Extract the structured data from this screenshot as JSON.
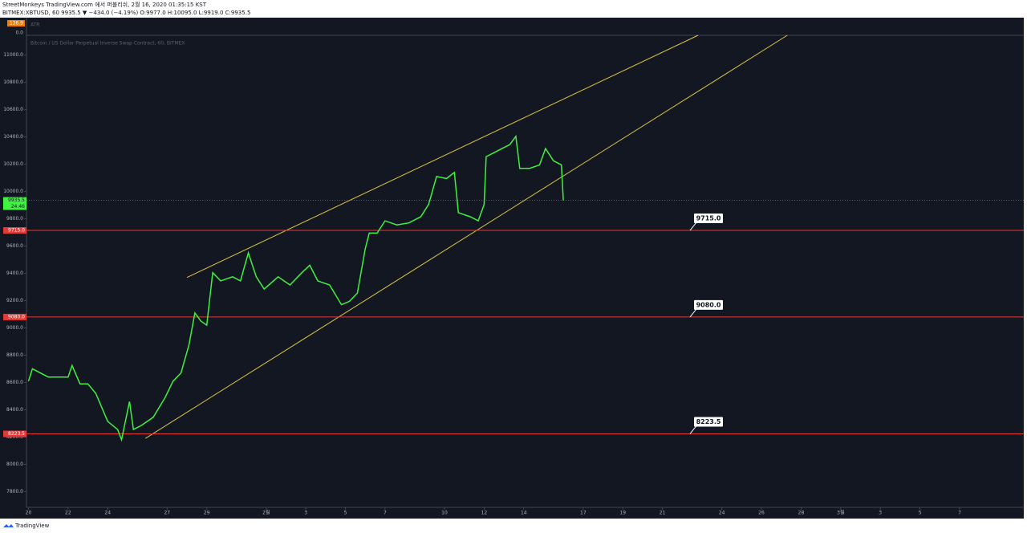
{
  "header": {
    "line1": "StreetMonkeys TradingView.com 에서 퍼블리쉬, 2월 16, 2020 01:35:15 KST",
    "line2": "BITMEX:XBTUSD, 60 9935.5 ▼ −434.0 (−4.19%) O:9977.0 H:10095.0 L:9919.0 C:9935.5"
  },
  "footer": {
    "brand": "TradingView"
  },
  "chart_data": {
    "type": "line",
    "subtitle": "Bitcoin / US Dollar Perpetual Inverse Swap Contract, 60, BITMEX",
    "indicator": {
      "name": "ATR",
      "value": 136.9,
      "axis_label": "0.0"
    },
    "color": "#3ff23f",
    "x": [
      0,
      0.2,
      1.0,
      2.0,
      2.2,
      2.6,
      3.0,
      3.4,
      4.0,
      4.5,
      4.7,
      5.1,
      5.3,
      5.7,
      6.3,
      6.9,
      7.3,
      7.7,
      8.1,
      8.4,
      8.7,
      9.0,
      9.3,
      9.7,
      10.3,
      10.7,
      11.1,
      11.5,
      11.9,
      12.6,
      13.2,
      13.8,
      14.2,
      14.6,
      15.2,
      15.8,
      16.2,
      16.6,
      17.0,
      17.2,
      17.6,
      18.0,
      18.6,
      19.2,
      19.8,
      20.2,
      20.6,
      21.1,
      21.5,
      21.7,
      22.3,
      22.7,
      23.0,
      23.1,
      23.5,
      23.9,
      24.3,
      24.6,
      24.8,
      25.3,
      25.8,
      26.1,
      26.5,
      26.9,
      27.0
    ],
    "values": [
      8610,
      8700,
      8640,
      8640,
      8725,
      8590,
      8590,
      8520,
      8315,
      8255,
      8180,
      8460,
      8255,
      8285,
      8345,
      8490,
      8610,
      8670,
      8875,
      9110,
      9050,
      9020,
      9405,
      9345,
      9375,
      9345,
      9550,
      9375,
      9285,
      9375,
      9315,
      9405,
      9460,
      9345,
      9315,
      9170,
      9195,
      9255,
      9580,
      9695,
      9695,
      9785,
      9755,
      9770,
      9815,
      9905,
      10110,
      10095,
      10140,
      9845,
      9815,
      9785,
      9905,
      10255,
      10285,
      10315,
      10345,
      10405,
      10170,
      10170,
      10195,
      10315,
      10225,
      10195,
      9935
    ],
    "last": {
      "value": 9935.5,
      "countdown": "24:46"
    },
    "levels": [
      {
        "value": 9715,
        "label": "9715.0"
      },
      {
        "value": 9080,
        "label": "9080.0"
      },
      {
        "value": 8223.5,
        "label": "8223.5"
      }
    ],
    "trendlines": [
      {
        "x": [
          8.0,
          33.8
        ],
        "y": [
          9370,
          11145
        ]
      },
      {
        "x": [
          5.9,
          38.3
        ],
        "y": [
          8190,
          11145
        ]
      }
    ],
    "xlim": [
      -0.1,
      50.2
    ],
    "xticks": [
      {
        "value": 0,
        "label": "20"
      },
      {
        "value": 2,
        "label": "22"
      },
      {
        "value": 4,
        "label": "24"
      },
      {
        "value": 7,
        "label": "27"
      },
      {
        "value": 9,
        "label": "29"
      },
      {
        "value": 12,
        "label": "2월"
      },
      {
        "value": 14,
        "label": "3"
      },
      {
        "value": 16,
        "label": "5"
      },
      {
        "value": 18,
        "label": "7"
      },
      {
        "value": 21,
        "label": "10"
      },
      {
        "value": 23,
        "label": "12"
      },
      {
        "value": 25,
        "label": "14"
      },
      {
        "value": 28,
        "label": "17"
      },
      {
        "value": 30,
        "label": "19"
      },
      {
        "value": 32,
        "label": "21"
      },
      {
        "value": 35,
        "label": "24"
      },
      {
        "value": 37,
        "label": "26"
      },
      {
        "value": 39,
        "label": "28"
      },
      {
        "value": 41,
        "label": "3월"
      },
      {
        "value": 43,
        "label": "3"
      },
      {
        "value": 45,
        "label": "5"
      },
      {
        "value": 47,
        "label": "7"
      }
    ],
    "ylim": [
      7685,
      11145
    ],
    "yticks": [
      {
        "value": 7800,
        "label": "7800.0"
      },
      {
        "value": 8000,
        "label": "8000.0"
      },
      {
        "value": 8200,
        "label": "8200.0"
      },
      {
        "value": 8400,
        "label": "8400.0"
      },
      {
        "value": 8600,
        "label": "8600.0"
      },
      {
        "value": 8800,
        "label": "8800.0"
      },
      {
        "value": 9000,
        "label": "9000.0"
      },
      {
        "value": 9200,
        "label": "9200.0"
      },
      {
        "value": 9400,
        "label": "9400.0"
      },
      {
        "value": 9600,
        "label": "9600.0"
      },
      {
        "value": 9800,
        "label": "9800.0"
      },
      {
        "value": 10000,
        "label": "10000.0"
      },
      {
        "value": 10200,
        "label": "10200.0"
      },
      {
        "value": 10400,
        "label": "10400.0"
      },
      {
        "value": 10600,
        "label": "10600.0"
      },
      {
        "value": 10800,
        "label": "10800.0"
      },
      {
        "value": 11000,
        "label": "11000.0"
      }
    ]
  }
}
